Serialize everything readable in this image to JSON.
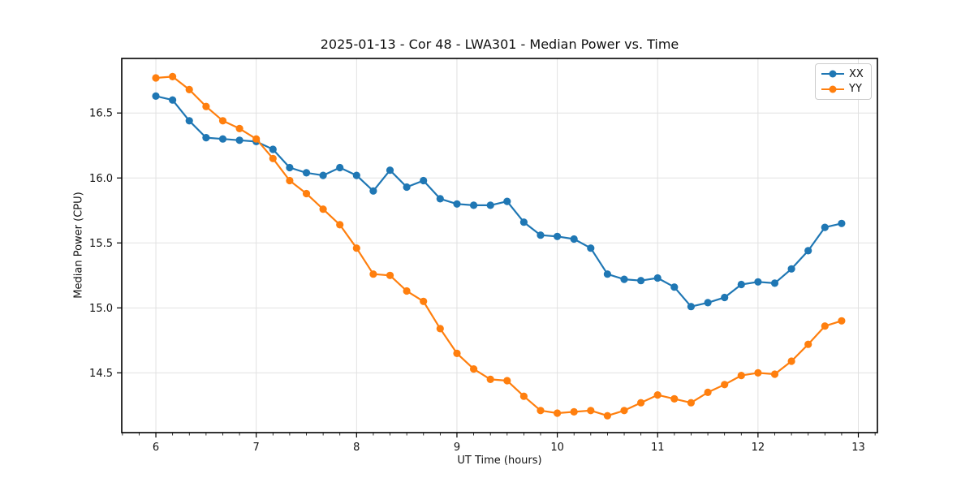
{
  "chart_data": {
    "type": "line",
    "title": "2025-01-13 - Cor 48 - LWA301 - Median Power vs. Time",
    "xlabel": "UT Time (hours)",
    "ylabel": "Median Power (CPU)",
    "xlim": [
      5.66,
      13.19
    ],
    "ylim": [
      14.04,
      16.92
    ],
    "x_major_ticks": [
      6,
      7,
      8,
      9,
      10,
      11,
      12,
      13
    ],
    "x_minor_interval": 0.16667,
    "y_major_ticks": [
      14.5,
      15.0,
      15.5,
      16.0,
      16.5
    ],
    "grid": true,
    "grid_color": "#e1e1e1",
    "legend_position": "upper right",
    "marker": "circle",
    "x": [
      6.0,
      6.1667,
      6.3333,
      6.5,
      6.6667,
      6.8333,
      7.0,
      7.1667,
      7.3333,
      7.5,
      7.6667,
      7.8333,
      8.0,
      8.1667,
      8.3333,
      8.5,
      8.6667,
      8.8333,
      9.0,
      9.1667,
      9.3333,
      9.5,
      9.6667,
      9.8333,
      10.0,
      10.1667,
      10.3333,
      10.5,
      10.6667,
      10.8333,
      11.0,
      11.1667,
      11.3333,
      11.5,
      11.6667,
      11.8333,
      12.0,
      12.1667,
      12.3333,
      12.5,
      12.6667,
      12.8333
    ],
    "series": [
      {
        "name": "XX",
        "color": "#1f77b4",
        "values": [
          16.63,
          16.6,
          16.44,
          16.31,
          16.3,
          16.29,
          16.28,
          16.22,
          16.08,
          16.04,
          16.02,
          16.08,
          16.02,
          15.9,
          16.06,
          15.93,
          15.98,
          15.84,
          15.8,
          15.79,
          15.79,
          15.82,
          15.66,
          15.56,
          15.55,
          15.53,
          15.46,
          15.26,
          15.22,
          15.21,
          15.23,
          15.16,
          15.01,
          15.04,
          15.08,
          15.18,
          15.2,
          15.19,
          15.3,
          15.44,
          15.62,
          15.65
        ]
      },
      {
        "name": "YY",
        "color": "#ff7f0e",
        "values": [
          16.77,
          16.78,
          16.68,
          16.55,
          16.44,
          16.38,
          16.3,
          16.15,
          15.98,
          15.88,
          15.76,
          15.64,
          15.46,
          15.26,
          15.25,
          15.13,
          15.05,
          14.84,
          14.65,
          14.53,
          14.45,
          14.44,
          14.32,
          14.21,
          14.19,
          14.2,
          14.21,
          14.17,
          14.21,
          14.27,
          14.33,
          14.3,
          14.27,
          14.35,
          14.41,
          14.48,
          14.5,
          14.49,
          14.59,
          14.72,
          14.86,
          14.9
        ]
      }
    ]
  }
}
